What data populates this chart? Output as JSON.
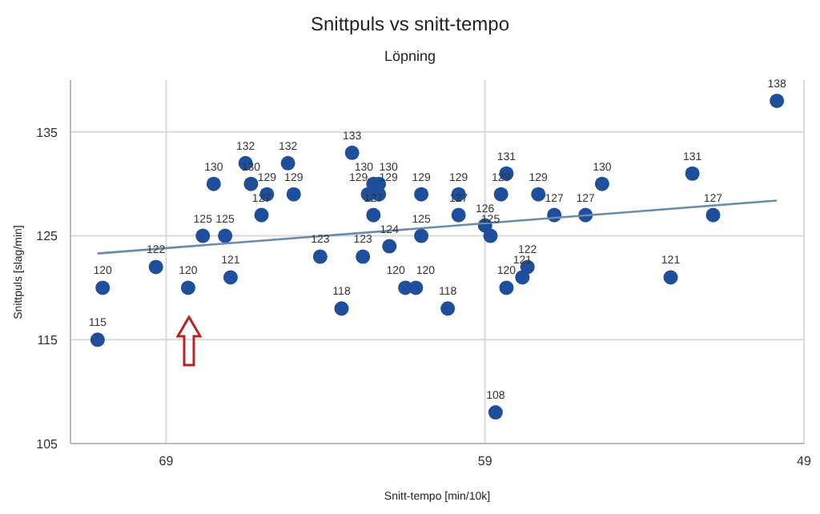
{
  "chart_data": {
    "type": "scatter",
    "title": "Snittpuls vs snitt-tempo",
    "subtitle": "Löpning",
    "xlabel": "Snitt-tempo [min/10k]",
    "ylabel": "Snittpuls [slag/min]",
    "xlim": [
      72,
      49
    ],
    "xticks": [
      69,
      59,
      49
    ],
    "ylim": [
      105,
      140
    ],
    "yticks": [
      105,
      115,
      125,
      135
    ],
    "grid": true,
    "marker": "circle",
    "data_labels": true,
    "series": [
      {
        "color": "#1f4e9c",
        "x": [
          71.15,
          70.99,
          69.32,
          68.31,
          67.85,
          67.15,
          66.98,
          67.51,
          66.51,
          66.34,
          65.84,
          66.01,
          65.18,
          65.0,
          64.17,
          63.17,
          62.5,
          62.33,
          62.67,
          62.33,
          62.5,
          62.83,
          63.5,
          62.0,
          61.0,
          61.0,
          61.5,
          61.17,
          59.83,
          59.83,
          60.17,
          59.0,
          58.83,
          58.33,
          58.5,
          57.33,
          56.83,
          57.67,
          57.83,
          58.33,
          58.67,
          49.85,
          52.5,
          55.33,
          55.85,
          51.85,
          53.18
        ],
        "values": [
          115,
          120,
          122,
          120,
          125,
          125,
          121,
          130,
          132,
          130,
          129,
          127,
          132,
          129,
          123,
          133,
          130,
          130,
          129,
          129,
          127,
          123,
          118,
          124,
          129,
          125,
          120,
          120,
          129,
          127,
          118,
          126,
          125,
          131,
          129,
          129,
          127,
          122,
          121,
          120,
          108,
          138,
          131,
          130,
          127,
          127,
          121
        ]
      },
      {
        "type": "line",
        "marker": "none",
        "data_labels": false,
        "color": "#6a8cab",
        "x": [
          71.15,
          49.85
        ],
        "values": [
          123.3,
          128.4
        ]
      }
    ]
  }
}
